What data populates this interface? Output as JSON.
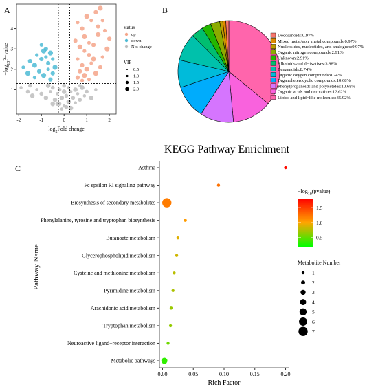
{
  "panels": {
    "a": "A",
    "b": "B",
    "c": "C"
  },
  "chart_data": [
    {
      "type": "scatter",
      "id": "volcano",
      "title": "",
      "xlabel": "log2Fold change",
      "ylabel": "-log10P-value",
      "xlim": [
        -2.1,
        2.3
      ],
      "ylim": [
        -0.2,
        5.2
      ],
      "xticks": [
        -2,
        -1,
        0,
        1,
        2
      ],
      "yticks": [
        1,
        2,
        3,
        4
      ],
      "thresholds": {
        "x": [
          -0.25,
          0.25
        ],
        "y": 1.3
      },
      "colors": {
        "up": "#f4a58a",
        "down": "#4dbbd5",
        "not_change": "#bdbdbd"
      },
      "legend": {
        "status_title": "status",
        "status_items": [
          {
            "key": "up",
            "label": "up"
          },
          {
            "key": "down",
            "label": "down"
          },
          {
            "key": "not_change",
            "label": "Not change"
          }
        ],
        "vip_title": "VIP",
        "vip_items": [
          "0.5",
          "1.0",
          "1.5",
          "2.0"
        ]
      },
      "points": {
        "up": [
          [
            0.6,
            4.3
          ],
          [
            0.8,
            4.0
          ],
          [
            1.0,
            4.6
          ],
          [
            1.2,
            4.4
          ],
          [
            1.4,
            4.8
          ],
          [
            1.6,
            5.0
          ],
          [
            1.7,
            4.4
          ],
          [
            1.5,
            4.1
          ],
          [
            0.9,
            3.6
          ],
          [
            1.1,
            3.3
          ],
          [
            1.3,
            3.2
          ],
          [
            1.5,
            3.7
          ],
          [
            1.8,
            3.9
          ],
          [
            2.0,
            3.5
          ],
          [
            0.7,
            3.1
          ],
          [
            0.9,
            2.9
          ],
          [
            1.1,
            2.7
          ],
          [
            1.3,
            2.5
          ],
          [
            0.6,
            2.5
          ],
          [
            0.8,
            2.2
          ],
          [
            1.0,
            2.0
          ],
          [
            1.2,
            2.3
          ],
          [
            0.7,
            1.9
          ],
          [
            0.9,
            1.7
          ],
          [
            1.1,
            1.5
          ],
          [
            0.6,
            1.6
          ],
          [
            1.4,
            1.8
          ],
          [
            1.7,
            2.6
          ],
          [
            0.5,
            3.4
          ],
          [
            1.9,
            3.0
          ],
          [
            0.8,
            1.45
          ],
          [
            1.6,
            2.1
          ]
        ],
        "down": [
          [
            -1.8,
            2.1
          ],
          [
            -1.5,
            2.4
          ],
          [
            -1.3,
            2.2
          ],
          [
            -1.2,
            2.7
          ],
          [
            -1.0,
            2.5
          ],
          [
            -0.9,
            2.9
          ],
          [
            -0.8,
            2.6
          ],
          [
            -0.7,
            2.3
          ],
          [
            -0.6,
            2.8
          ],
          [
            -0.5,
            2.5
          ],
          [
            -1.1,
            1.9
          ],
          [
            -0.9,
            1.7
          ],
          [
            -0.7,
            2.0
          ],
          [
            -0.5,
            1.8
          ],
          [
            -0.4,
            2.1
          ],
          [
            -1.3,
            1.6
          ],
          [
            -0.6,
            1.5
          ],
          [
            -1.6,
            1.8
          ],
          [
            -1.0,
            3.2
          ],
          [
            -0.8,
            3.0
          ]
        ],
        "not_change": [
          [
            -1.9,
            1.1
          ],
          [
            -1.6,
            0.9
          ],
          [
            -1.4,
            0.7
          ],
          [
            -1.2,
            1.0
          ],
          [
            -1.0,
            0.8
          ],
          [
            -0.8,
            0.6
          ],
          [
            -0.6,
            0.9
          ],
          [
            -0.5,
            1.1
          ],
          [
            -0.4,
            0.5
          ],
          [
            -0.3,
            0.8
          ],
          [
            -0.2,
            0.3
          ],
          [
            -0.1,
            0.6
          ],
          [
            0.0,
            0.2
          ],
          [
            0.1,
            0.7
          ],
          [
            0.2,
            0.4
          ],
          [
            0.3,
            0.9
          ],
          [
            0.4,
            0.6
          ],
          [
            0.5,
            1.0
          ],
          [
            0.6,
            0.8
          ],
          [
            0.7,
            0.5
          ],
          [
            0.8,
            1.1
          ],
          [
            0.9,
            0.7
          ],
          [
            1.0,
            0.9
          ],
          [
            1.2,
            0.6
          ],
          [
            1.4,
            1.0
          ],
          [
            -0.2,
            1.0
          ],
          [
            0.0,
            0.9
          ],
          [
            0.2,
            1.1
          ],
          [
            -0.3,
            0.3
          ],
          [
            0.3,
            0.1
          ],
          [
            -0.1,
            0.05
          ],
          [
            0.1,
            0.15
          ],
          [
            -0.5,
            0.3
          ],
          [
            0.5,
            0.35
          ],
          [
            0.0,
            1.2
          ],
          [
            -0.7,
            1.2
          ],
          [
            0.7,
            1.2
          ],
          [
            -1.5,
            1.2
          ]
        ]
      }
    },
    {
      "type": "pie",
      "id": "classification",
      "title": "",
      "slices": [
        {
          "label": "Docosanoids:0.97%",
          "value": 0.97,
          "color": "#f8766d"
        },
        {
          "label": "Mixed metal/non−metal compounds:0.97%",
          "value": 0.97,
          "color": "#e18a00"
        },
        {
          "label": "Nucleosides, nucleotides, and analogues:0.97%",
          "value": 0.97,
          "color": "#be9c00"
        },
        {
          "label": "Organic nitrogen compounds:2.91%",
          "value": 2.91,
          "color": "#8cab00"
        },
        {
          "label": "Unknown:2.91%",
          "value": 2.91,
          "color": "#24b700"
        },
        {
          "label": "Alkaloids and derivatives:3.88%",
          "value": 3.88,
          "color": "#00be70"
        },
        {
          "label": "Benzenoids:8.74%",
          "value": 8.74,
          "color": "#00c1ab"
        },
        {
          "label": "Organic oxygen compounds:8.74%",
          "value": 8.74,
          "color": "#00bbda"
        },
        {
          "label": "Organoheterocyclic compounds:10.68%",
          "value": 10.68,
          "color": "#00acfc"
        },
        {
          "label": "Phenylpropanoids and polyketides:10.68%",
          "value": 10.68,
          "color": "#d575fe"
        },
        {
          "label": "Organic acids and derivatives:12.62%",
          "value": 12.62,
          "color": "#f962dd"
        },
        {
          "label": "Lipids and lipid−like molecules:35.92%",
          "value": 35.92,
          "color": "#ff65ac"
        }
      ]
    },
    {
      "type": "scatter",
      "id": "kegg",
      "title": "KEGG Pathway Enrichment",
      "xlabel": "Rich Factor",
      "ylabel": "Pathway Name",
      "xlim": [
        -0.005,
        0.205
      ],
      "xticks": [
        "0.00",
        "0.05",
        "0.10",
        "0.15",
        "0.20"
      ],
      "pathways": [
        {
          "name": "Asthma",
          "rich": 0.2,
          "p": 1.75,
          "count": 1
        },
        {
          "name": "Fc epsilon RI signaling pathway",
          "rich": 0.091,
          "p": 1.25,
          "count": 1
        },
        {
          "name": "Biosynthesis of secondary metabolites",
          "rich": 0.007,
          "p": 1.2,
          "count": 7
        },
        {
          "name": "Phenylalanine, tyrosine and tryptophan biosynthesis",
          "rich": 0.037,
          "p": 1.05,
          "count": 1
        },
        {
          "name": "Butanoate metabolism",
          "rich": 0.025,
          "p": 0.9,
          "count": 1
        },
        {
          "name": "Glycerophospholipid metabolism",
          "rich": 0.023,
          "p": 0.85,
          "count": 1
        },
        {
          "name": "Cysteine and methionine metabolism",
          "rich": 0.019,
          "p": 0.78,
          "count": 1
        },
        {
          "name": "Pyrimidine metabolism",
          "rich": 0.017,
          "p": 0.74,
          "count": 1
        },
        {
          "name": "Arachidonic acid metabolism",
          "rich": 0.014,
          "p": 0.68,
          "count": 1
        },
        {
          "name": "Tryptophan metabolism",
          "rich": 0.013,
          "p": 0.66,
          "count": 1
        },
        {
          "name": "Neuroactive ligand−receptor interaction",
          "rich": 0.009,
          "p": 0.55,
          "count": 1
        },
        {
          "name": "Metabolic pathways",
          "rich": 0.003,
          "p": 0.35,
          "count": 4
        }
      ],
      "color_scale": {
        "min": 0.2,
        "max": 1.8,
        "low": "#00ff00",
        "mid": "#ffa500",
        "high": "#ff0000"
      },
      "colorbar_title": "−log10(pvalue)",
      "colorbar_ticks": [
        "1.5",
        "1.0",
        "0.5"
      ],
      "colorbar_tick_values": [
        1.5,
        1.0,
        0.5
      ],
      "size_title": "Metabolite Number",
      "size_ticks": [
        "1",
        "2",
        "3",
        "4",
        "5",
        "6",
        "7"
      ]
    }
  ]
}
